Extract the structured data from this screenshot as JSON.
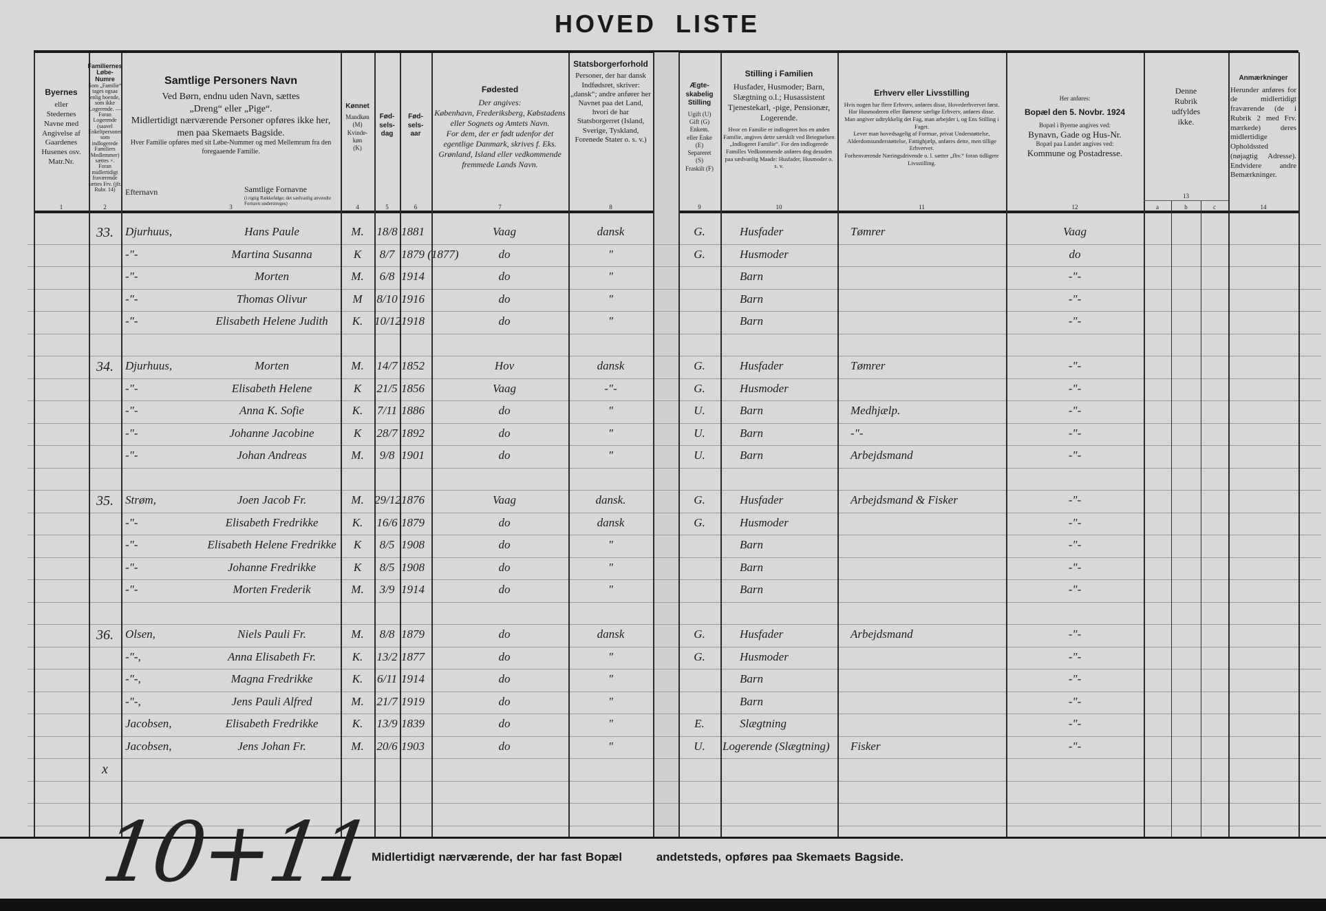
{
  "title": "HOVED LISTE",
  "columns": {
    "c1": {
      "title": "Byernes",
      "body": "eller\nStedernes\nNavne med\nAngivelse af\nGaardenes\nHusenes osv.\nMatr.Nr.",
      "num": "1"
    },
    "c2": {
      "title": "Familiernes Løbe-Numre",
      "body": "Som „Familie“ tages ogsaa enlig boende, som ikke Logerende. — Foran Logerende (saavel Enkeltpersoner som indlogerede Familiers Medlemmer) sættes ×. Foran midlertidigt fraværende sættes Frv. (jfr. Rubr. 14)",
      "num": "2"
    },
    "c3": {
      "title": "Samtlige Personers Navn",
      "p1": "Ved Børn, endnu uden Navn, sættes „Dreng“ eller „Pige“.",
      "p2": "Midlertidigt nærværende Personer opføres ikke her, men paa Skemaets Bagside.",
      "p3": "Hver Familie opføres med sit Løbe-Nummer og med Mellemrum fra den foregaaende Familie.",
      "sub_surname": "Efternavn",
      "sub_given": "Samtlige Fornavne",
      "sub_given_note": "(i rigtig Rækkefølge; det sædvanlig anvendte Fornavn understreges)",
      "num": "3"
    },
    "c4": {
      "title": "Kønnet",
      "body": "Mandkøn\n(M)\nKvinde-\nkøn\n(K)",
      "num": "4"
    },
    "c5": {
      "title": "Fød-\nsels-\ndag",
      "num": "5"
    },
    "c6": {
      "title": "Fød-\nsels-\naar",
      "num": "6"
    },
    "c7": {
      "title": "Fødested",
      "body": "Der angives:\nKøbenhavn, Frederiksberg, Købstadens eller Sognets og Amtets Navn.\nFor dem, der er født udenfor det egentlige Danmark, skrives f. Eks. Grønland, Island eller vedkommende fremmede Lands Navn.",
      "num": "7"
    },
    "c8": {
      "title": "Statsborgerforhold",
      "body": "Personer, der har dansk Indfødsret, skriver: „dansk“; andre anfører her Navnet paa det Land, hvori de har Statsborgerret (Island, Sverige, Tyskland, Forenede Stater o. s. v.)",
      "num": "8"
    },
    "c9": {
      "title": "Ægte-\nskabelig\nStilling",
      "body": "Ugift (U)\nGift (G)\nEnkem.\neller Enke\n(E)\nSepareret\n(S)\nFraskilt (F)",
      "num": "9"
    },
    "c10": {
      "title": "Stilling i Familien",
      "body": "Husfader, Husmoder; Barn, Slægtning o.l.; Husassistent Tjenestekarl, -pige, Pensionær, Logerende.",
      "note": "Hvor en Familie er indlogeret hos en anden Familie, angives dette særskilt ved Betegnelsen „Indlogeret Familie“. For den indlogerede Familles Vedkommende anføres dog desuden paa sædvanlig Maade: Husfader, Husmoder o. s. v.",
      "num": "10"
    },
    "c11": {
      "title": "Erhverv eller Livsstilling",
      "body": "Hvis nogen har flere Erhverv, anføres disse, Hovederhvervet først.\nHar Husmoderen eller Børnene særlige Erhverv, anføres disse.\nMan angiver udtrykkelig det Fag, man arbejder i, og Ens Stilling i Faget.\nLever man hovedsagelig af Formue, privat Understøttelse, Alderdomsunderstøttelse, Fattighjælp, anføres dette, men tillige Erhvervet.\nForhenværende Næringsdrivende o. l. sætter „fhv.“ foran tidligere Livsstilling.",
      "num": "11"
    },
    "c12": {
      "pre": "Her anføres:",
      "title": "Bopæl den 5. Novbr. 1924",
      "b1": "Bopæl i Byerne angives ved:",
      "b2": "Bynavn, Gade og Hus-Nr.",
      "b3": "Bopæl paa Landet angives ved:",
      "b4": "Kommune og Postadresse.",
      "num": "12"
    },
    "c13": {
      "body": "Denne\nRubrik\nudfyldes\nikke.",
      "num": "13",
      "a": "a",
      "b": "b",
      "c": "c"
    },
    "c14": {
      "title": "Anmærkninger",
      "body": "Herunder anføres for de midlertidigt fraværende (de i Rubrik 2 med Frv. mærkede) deres midlertidige Opholdssted (nøjagtig Adresse). Endvidere andre Bemærkninger.",
      "num": "14"
    }
  },
  "rows": [
    {
      "row": 0,
      "nr": "33.",
      "surname": "Djurhuus,",
      "given": "Hans Paule",
      "sex": "M.",
      "day": "18/8",
      "year": "1881",
      "birthplace": "Vaag",
      "citizen": "dansk",
      "marital": "G.",
      "position": "Husfader",
      "occupation": "Tømrer",
      "residence": "Vaag"
    },
    {
      "row": 1,
      "surname": "-\"-",
      "given": "Martina Susanna",
      "sex": "K",
      "day": "8/7",
      "year": "1879 (1877)",
      "birthplace": "do",
      "citizen": "\"",
      "marital": "G.",
      "position": "Husmoder",
      "residence": "do"
    },
    {
      "row": 2,
      "surname": "-\"-",
      "given": "Morten",
      "sex": "M.",
      "day": "6/8",
      "year": "1914",
      "birthplace": "do",
      "citizen": "\"",
      "position": "Barn",
      "residence": "-\"-"
    },
    {
      "row": 3,
      "surname": "-\"-",
      "given": "Thomas Olivur",
      "sex": "M",
      "day": "8/10",
      "year": "1916",
      "birthplace": "do",
      "citizen": "\"",
      "position": "Barn",
      "residence": "-\"-"
    },
    {
      "row": 4,
      "surname": "-\"-",
      "given": "Elisabeth Helene Judith",
      "sex": "K.",
      "day": "10/12",
      "year": "1918",
      "birthplace": "do",
      "citizen": "\"",
      "position": "Barn",
      "residence": "-\"-"
    },
    {
      "row": 6,
      "nr": "34.",
      "surname": "Djurhuus,",
      "given": "Morten",
      "sex": "M.",
      "day": "14/7",
      "year": "1852",
      "birthplace": "Hov",
      "citizen": "dansk",
      "marital": "G.",
      "position": "Husfader",
      "occupation": "Tømrer",
      "residence": "-\"-"
    },
    {
      "row": 7,
      "surname": "-\"-",
      "given": "Elisabeth Helene",
      "sex": "K",
      "day": "21/5",
      "year": "1856",
      "birthplace": "Vaag",
      "citizen": "-\"-",
      "marital": "G.",
      "position": "Husmoder",
      "residence": "-\"-"
    },
    {
      "row": 8,
      "surname": "-\"-",
      "given": "Anna K. Sofie",
      "sex": "K.",
      "day": "7/11",
      "year": "1886",
      "birthplace": "do",
      "citizen": "\"",
      "marital": "U.",
      "position": "Barn",
      "occupation": "Medhjælp.",
      "residence": "-\"-"
    },
    {
      "row": 9,
      "surname": "-\"-",
      "given": "Johanne Jacobine",
      "sex": "K",
      "day": "28/7",
      "year": "1892",
      "birthplace": "do",
      "citizen": "\"",
      "marital": "U.",
      "position": "Barn",
      "occupation": "-\"-",
      "residence": "-\"-"
    },
    {
      "row": 10,
      "surname": "-\"-",
      "given": "Johan Andreas",
      "sex": "M.",
      "day": "9/8",
      "year": "1901",
      "birthplace": "do",
      "citizen": "\"",
      "marital": "U.",
      "position": "Barn",
      "occupation": "Arbejdsmand",
      "residence": "-\"-"
    },
    {
      "row": 12,
      "nr": "35.",
      "surname": "Strøm,",
      "given": "Joen Jacob Fr.",
      "sex": "M.",
      "day": "29/12",
      "year": "1876",
      "birthplace": "Vaag",
      "citizen": "dansk.",
      "marital": "G.",
      "position": "Husfader",
      "occupation": "Arbejdsmand & Fisker",
      "residence": "-\"-"
    },
    {
      "row": 13,
      "surname": "-\"-",
      "given": "Elisabeth Fredrikke",
      "sex": "K.",
      "day": "16/6",
      "year": "1879",
      "birthplace": "do",
      "citizen": "dansk",
      "marital": "G.",
      "position": "Husmoder",
      "residence": "-\"-"
    },
    {
      "row": 14,
      "surname": "-\"-",
      "given": "Elisabeth Helene Fredrikke",
      "sex": "K",
      "day": "8/5",
      "year": "1908",
      "birthplace": "do",
      "citizen": "\"",
      "position": "Barn",
      "residence": "-\"-"
    },
    {
      "row": 15,
      "surname": "-\"-",
      "given": "Johanne Fredrikke",
      "sex": "K",
      "day": "8/5",
      "year": "1908",
      "birthplace": "do",
      "citizen": "\"",
      "position": "Barn",
      "residence": "-\"-"
    },
    {
      "row": 16,
      "surname": "-\"-",
      "given": "Morten Frederik",
      "sex": "M.",
      "day": "3/9",
      "year": "1914",
      "birthplace": "do",
      "citizen": "\"",
      "position": "Barn",
      "residence": "-\"-"
    },
    {
      "row": 18,
      "nr": "36.",
      "surname": "Olsen,",
      "given": "Niels Pauli Fr.",
      "sex": "M.",
      "day": "8/8",
      "year": "1879",
      "birthplace": "do",
      "citizen": "dansk",
      "marital": "G.",
      "position": "Husfader",
      "occupation": "Arbejdsmand",
      "residence": "-\"-"
    },
    {
      "row": 19,
      "surname": "-\"-,",
      "given": "Anna Elisabeth Fr.",
      "sex": "K.",
      "day": "13/2",
      "year": "1877",
      "birthplace": "do",
      "citizen": "\"",
      "marital": "G.",
      "position": "Husmoder",
      "residence": "-\"-"
    },
    {
      "row": 20,
      "surname": "-\"-,",
      "given": "Magna Fredrikke",
      "sex": "K.",
      "day": "6/11",
      "year": "1914",
      "birthplace": "do",
      "citizen": "\"",
      "position": "Barn",
      "residence": "-\"-"
    },
    {
      "row": 21,
      "surname": "-\"-,",
      "given": "Jens Pauli Alfred",
      "sex": "M.",
      "day": "21/7",
      "year": "1919",
      "birthplace": "do",
      "citizen": "\"",
      "position": "Barn",
      "residence": "-\"-"
    },
    {
      "row": 22,
      "surname": "Jacobsen,",
      "given": "Elisabeth Fredrikke",
      "sex": "K.",
      "day": "13/9",
      "year": "1839",
      "birthplace": "do",
      "citizen": "\"",
      "marital": "E.",
      "position": "Slægtning",
      "residence": "-\"-"
    },
    {
      "row": 23,
      "surname": "Jacobsen,",
      "given": "Jens Johan Fr.",
      "sex": "M.",
      "day": "20/6",
      "year": "1903",
      "birthplace": "do",
      "citizen": "\"",
      "marital": "U.",
      "position": "Logerende (Slægtning)",
      "occupation": "Fisker",
      "residence": "-\"-"
    },
    {
      "row": 24,
      "nr": "x"
    }
  ],
  "tally": "10+11",
  "footer": {
    "part1": "Midlertidigt nærværende, der har fast Bopæl",
    "part2": "andetsteds, opføres paa Skemaets Bagside."
  }
}
